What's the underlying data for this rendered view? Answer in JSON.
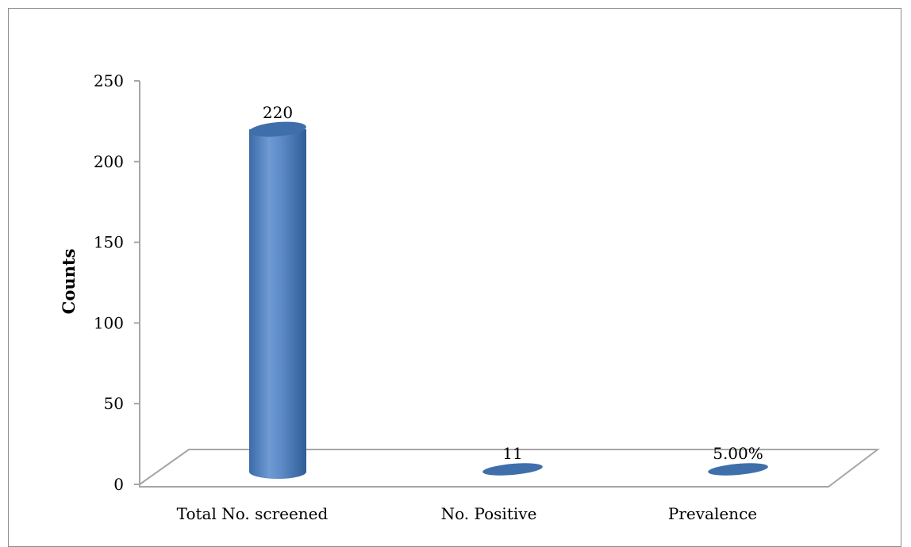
{
  "chart_data": {
    "type": "bar",
    "title": "",
    "xlabel": "",
    "ylabel": "Counts",
    "ylim": [
      0,
      250
    ],
    "yticks": [
      0,
      50,
      100,
      150,
      200,
      250
    ],
    "categories": [
      "Total No. screened",
      "No. Positive",
      "Prevalence"
    ],
    "values": [
      220,
      11,
      0.05
    ],
    "data_labels": [
      "220",
      "11",
      "5.00%"
    ],
    "grid": false,
    "legend": "none",
    "colors": {
      "bar": "#4f81bd",
      "bar_dark": "#2e5f99",
      "bar_light": "#7ea6d8",
      "floor": "#a6a6a6"
    }
  }
}
